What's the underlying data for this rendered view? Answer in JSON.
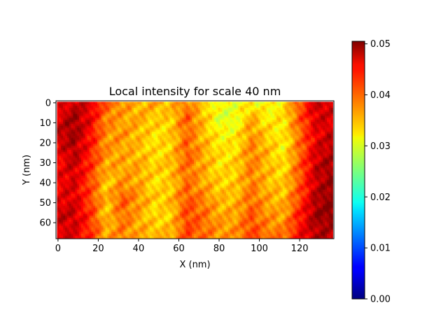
{
  "chart_data": {
    "type": "heatmap",
    "title": "Local intensity for scale 40 nm",
    "xlabel": "X (nm)",
    "ylabel": "Y (nm)",
    "xlim": [
      -1,
      137
    ],
    "ylim": [
      68,
      -1
    ],
    "x_ticks": [
      0,
      20,
      40,
      60,
      80,
      100,
      120
    ],
    "y_ticks": [
      0,
      10,
      20,
      30,
      40,
      50,
      60
    ],
    "colormap": "jet",
    "colorbar": {
      "vmin": 0.0,
      "vmax": 0.0505,
      "ticks": [
        "0.00",
        "0.01",
        "0.02",
        "0.03",
        "0.04",
        "0.05"
      ]
    },
    "description_of_field": {
      "x_grid": [
        0,
        8,
        16,
        24,
        32,
        40,
        48,
        56,
        64,
        72,
        80,
        88,
        96,
        104,
        112,
        120,
        128,
        136
      ],
      "y_grid": [
        0,
        8,
        16,
        24,
        32,
        40,
        48,
        56,
        64,
        68
      ],
      "values": [
        [
          0.044,
          0.047,
          0.046,
          0.04,
          0.037,
          0.035,
          0.036,
          0.035,
          0.038,
          0.034,
          0.031,
          0.031,
          0.032,
          0.031,
          0.033,
          0.04,
          0.047,
          0.046
        ],
        [
          0.046,
          0.049,
          0.045,
          0.038,
          0.036,
          0.036,
          0.034,
          0.034,
          0.04,
          0.035,
          0.03,
          0.03,
          0.036,
          0.032,
          0.033,
          0.04,
          0.046,
          0.046
        ],
        [
          0.047,
          0.049,
          0.044,
          0.037,
          0.037,
          0.035,
          0.033,
          0.034,
          0.039,
          0.035,
          0.032,
          0.032,
          0.037,
          0.034,
          0.032,
          0.039,
          0.045,
          0.047
        ],
        [
          0.045,
          0.048,
          0.043,
          0.037,
          0.036,
          0.035,
          0.033,
          0.034,
          0.04,
          0.036,
          0.033,
          0.033,
          0.038,
          0.035,
          0.032,
          0.039,
          0.046,
          0.048
        ],
        [
          0.044,
          0.047,
          0.042,
          0.036,
          0.036,
          0.036,
          0.034,
          0.035,
          0.039,
          0.036,
          0.033,
          0.034,
          0.038,
          0.035,
          0.033,
          0.04,
          0.047,
          0.049
        ],
        [
          0.045,
          0.046,
          0.041,
          0.034,
          0.037,
          0.036,
          0.033,
          0.034,
          0.039,
          0.036,
          0.034,
          0.034,
          0.038,
          0.035,
          0.034,
          0.04,
          0.047,
          0.049
        ],
        [
          0.045,
          0.046,
          0.041,
          0.035,
          0.04,
          0.037,
          0.034,
          0.035,
          0.04,
          0.038,
          0.035,
          0.035,
          0.039,
          0.036,
          0.035,
          0.041,
          0.048,
          0.05
        ],
        [
          0.047,
          0.047,
          0.042,
          0.034,
          0.039,
          0.036,
          0.033,
          0.034,
          0.041,
          0.039,
          0.036,
          0.036,
          0.04,
          0.037,
          0.036,
          0.043,
          0.049,
          0.05
        ],
        [
          0.046,
          0.046,
          0.042,
          0.036,
          0.038,
          0.036,
          0.035,
          0.035,
          0.041,
          0.039,
          0.037,
          0.037,
          0.041,
          0.038,
          0.038,
          0.044,
          0.048,
          0.048
        ],
        [
          0.046,
          0.046,
          0.042,
          0.036,
          0.038,
          0.036,
          0.035,
          0.036,
          0.041,
          0.039,
          0.037,
          0.037,
          0.041,
          0.039,
          0.039,
          0.044,
          0.048,
          0.048
        ]
      ]
    }
  }
}
